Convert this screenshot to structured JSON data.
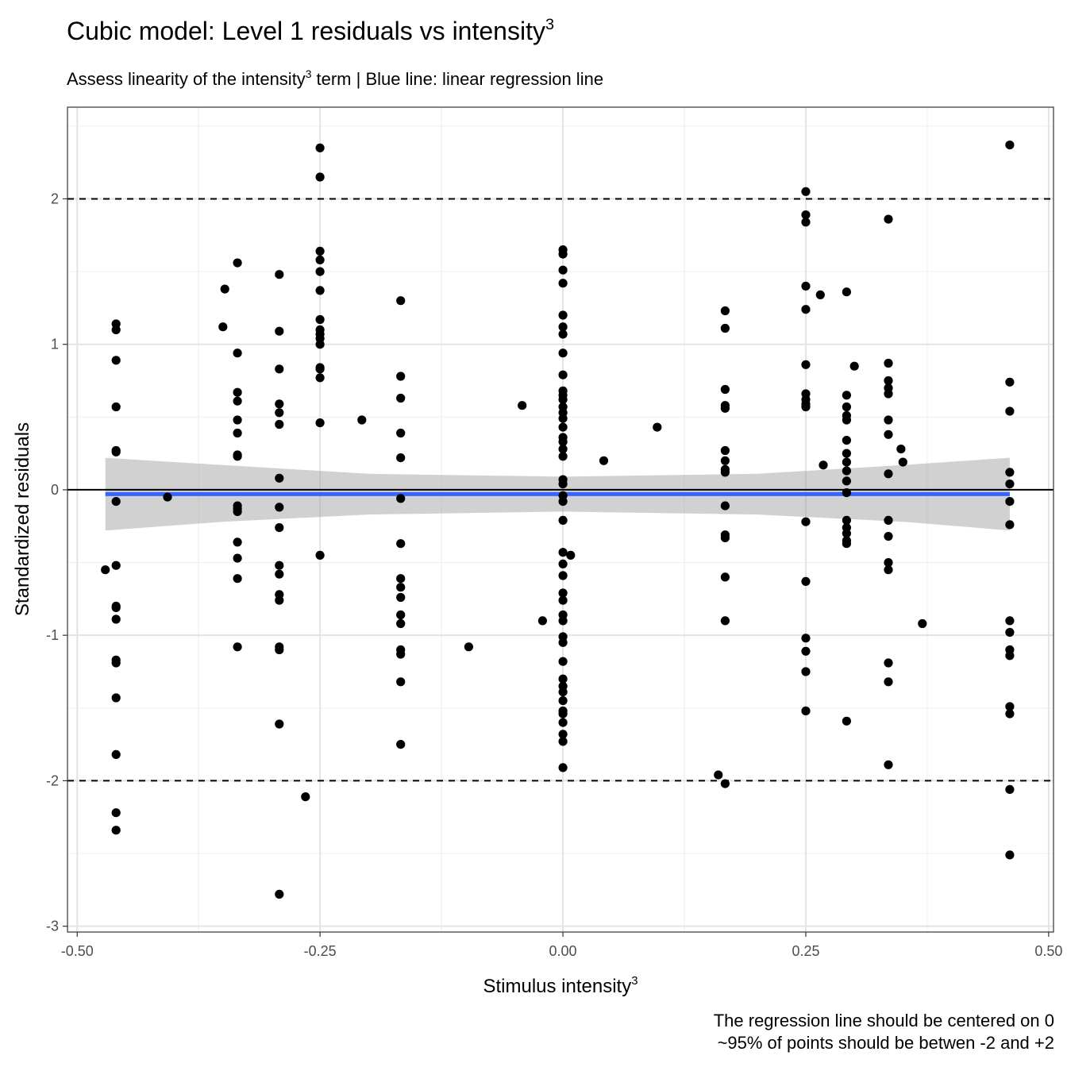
{
  "chart_data": {
    "type": "scatter",
    "title": "Cubic model: Level 1 residuals vs intensity",
    "title_superscript": "3",
    "subtitle_before": "Assess linearity of the intensity",
    "subtitle_superscript": "3",
    "subtitle_after": " term | Blue line: linear regression line",
    "xlabel": "Stimulus intensity",
    "xlabel_superscript": "3",
    "ylabel": "Standardized residuals",
    "caption_lines": [
      "The regression line should be centered on 0",
      "~95% of points should be betwen -2 and +2"
    ],
    "xlim": [
      -0.51,
      0.505
    ],
    "ylim": [
      -3.04,
      2.63
    ],
    "x_ticks": [
      {
        "value": -0.5,
        "label": "-0.50"
      },
      {
        "value": -0.25,
        "label": "-0.25"
      },
      {
        "value": 0,
        "label": "0.00"
      },
      {
        "value": 0.25,
        "label": "0.25"
      },
      {
        "value": 0.5,
        "label": "0.50"
      }
    ],
    "y_ticks": [
      {
        "value": -3,
        "label": "-3"
      },
      {
        "value": -2,
        "label": "-2"
      },
      {
        "value": -1,
        "label": "-1"
      },
      {
        "value": 0,
        "label": "0"
      },
      {
        "value": 1,
        "label": "1"
      },
      {
        "value": 2,
        "label": "2"
      }
    ],
    "grid": true,
    "reference_lines": {
      "zero": 0,
      "dashed": [
        -2,
        2
      ]
    },
    "regression": {
      "color": "#3366ff",
      "x": [
        -0.471,
        0.46
      ],
      "y": [
        -0.03,
        -0.03
      ],
      "ci_band": [
        {
          "x": -0.471,
          "lower": -0.28,
          "upper": 0.22
        },
        {
          "x": -0.35,
          "lower": -0.22,
          "upper": 0.17
        },
        {
          "x": -0.2,
          "lower": -0.17,
          "upper": 0.11
        },
        {
          "x": 0.0,
          "lower": -0.15,
          "upper": 0.09
        },
        {
          "x": 0.2,
          "lower": -0.17,
          "upper": 0.11
        },
        {
          "x": 0.35,
          "lower": -0.22,
          "upper": 0.17
        },
        {
          "x": 0.46,
          "lower": -0.28,
          "upper": 0.22
        }
      ]
    },
    "points": [
      {
        "x": -0.471,
        "y": -0.55
      },
      {
        "x": -0.46,
        "y": 1.14
      },
      {
        "x": -0.46,
        "y": 1.1
      },
      {
        "x": -0.46,
        "y": 0.89
      },
      {
        "x": -0.46,
        "y": 0.57
      },
      {
        "x": -0.46,
        "y": 0.27
      },
      {
        "x": -0.46,
        "y": 0.26
      },
      {
        "x": -0.46,
        "y": -0.08
      },
      {
        "x": -0.46,
        "y": -0.52
      },
      {
        "x": -0.46,
        "y": -0.8
      },
      {
        "x": -0.46,
        "y": -0.81
      },
      {
        "x": -0.46,
        "y": -0.89
      },
      {
        "x": -0.46,
        "y": -1.17
      },
      {
        "x": -0.46,
        "y": -1.19
      },
      {
        "x": -0.46,
        "y": -1.43
      },
      {
        "x": -0.46,
        "y": -1.82
      },
      {
        "x": -0.46,
        "y": -2.22
      },
      {
        "x": -0.46,
        "y": -2.34
      },
      {
        "x": -0.407,
        "y": -0.05
      },
      {
        "x": -0.348,
        "y": 1.38
      },
      {
        "x": -0.35,
        "y": 1.12
      },
      {
        "x": -0.335,
        "y": 1.56
      },
      {
        "x": -0.335,
        "y": 0.94
      },
      {
        "x": -0.335,
        "y": 0.67
      },
      {
        "x": -0.335,
        "y": 0.61
      },
      {
        "x": -0.335,
        "y": 0.48
      },
      {
        "x": -0.335,
        "y": 0.39
      },
      {
        "x": -0.335,
        "y": 0.24
      },
      {
        "x": -0.335,
        "y": 0.23
      },
      {
        "x": -0.335,
        "y": -0.11
      },
      {
        "x": -0.335,
        "y": -0.13
      },
      {
        "x": -0.335,
        "y": -0.15
      },
      {
        "x": -0.335,
        "y": -0.36
      },
      {
        "x": -0.335,
        "y": -0.47
      },
      {
        "x": -0.335,
        "y": -0.61
      },
      {
        "x": -0.335,
        "y": -1.08
      },
      {
        "x": -0.292,
        "y": 1.48
      },
      {
        "x": -0.292,
        "y": 1.09
      },
      {
        "x": -0.292,
        "y": 0.83
      },
      {
        "x": -0.292,
        "y": 0.59
      },
      {
        "x": -0.292,
        "y": 0.53
      },
      {
        "x": -0.292,
        "y": 0.45
      },
      {
        "x": -0.292,
        "y": 0.08
      },
      {
        "x": -0.292,
        "y": -0.12
      },
      {
        "x": -0.292,
        "y": -0.26
      },
      {
        "x": -0.292,
        "y": -0.52
      },
      {
        "x": -0.292,
        "y": -0.58
      },
      {
        "x": -0.292,
        "y": -0.72
      },
      {
        "x": -0.292,
        "y": -0.76
      },
      {
        "x": -0.292,
        "y": -1.08
      },
      {
        "x": -0.292,
        "y": -1.1
      },
      {
        "x": -0.292,
        "y": -1.61
      },
      {
        "x": -0.292,
        "y": -2.78
      },
      {
        "x": -0.265,
        "y": -2.11
      },
      {
        "x": -0.25,
        "y": 2.35
      },
      {
        "x": -0.25,
        "y": 2.15
      },
      {
        "x": -0.25,
        "y": 1.64
      },
      {
        "x": -0.25,
        "y": 1.58
      },
      {
        "x": -0.25,
        "y": 1.5
      },
      {
        "x": -0.25,
        "y": 1.37
      },
      {
        "x": -0.25,
        "y": 1.17
      },
      {
        "x": -0.25,
        "y": 1.1
      },
      {
        "x": -0.25,
        "y": 1.07
      },
      {
        "x": -0.25,
        "y": 1.04
      },
      {
        "x": -0.25,
        "y": 1.0
      },
      {
        "x": -0.25,
        "y": 0.84
      },
      {
        "x": -0.25,
        "y": 0.83
      },
      {
        "x": -0.25,
        "y": 0.77
      },
      {
        "x": -0.25,
        "y": 0.46
      },
      {
        "x": -0.25,
        "y": -0.45
      },
      {
        "x": -0.207,
        "y": 0.48
      },
      {
        "x": -0.167,
        "y": 1.3
      },
      {
        "x": -0.167,
        "y": 0.78
      },
      {
        "x": -0.167,
        "y": 0.63
      },
      {
        "x": -0.167,
        "y": 0.39
      },
      {
        "x": -0.167,
        "y": 0.22
      },
      {
        "x": -0.167,
        "y": -0.06
      },
      {
        "x": -0.167,
        "y": -0.37
      },
      {
        "x": -0.167,
        "y": -0.61
      },
      {
        "x": -0.167,
        "y": -0.67
      },
      {
        "x": -0.167,
        "y": -0.74
      },
      {
        "x": -0.167,
        "y": -0.86
      },
      {
        "x": -0.167,
        "y": -0.92
      },
      {
        "x": -0.167,
        "y": -1.1
      },
      {
        "x": -0.167,
        "y": -1.13
      },
      {
        "x": -0.167,
        "y": -1.32
      },
      {
        "x": -0.167,
        "y": -1.75
      },
      {
        "x": -0.097,
        "y": -1.08
      },
      {
        "x": -0.042,
        "y": 0.58
      },
      {
        "x": -0.021,
        "y": -0.9
      },
      {
        "x": 0.0,
        "y": 1.65
      },
      {
        "x": 0.0,
        "y": 1.62
      },
      {
        "x": 0.0,
        "y": 1.51
      },
      {
        "x": 0.0,
        "y": 1.42
      },
      {
        "x": 0.0,
        "y": 1.2
      },
      {
        "x": 0.0,
        "y": 1.12
      },
      {
        "x": 0.0,
        "y": 1.07
      },
      {
        "x": 0.0,
        "y": 0.94
      },
      {
        "x": 0.0,
        "y": 0.79
      },
      {
        "x": 0.0,
        "y": 0.68
      },
      {
        "x": 0.0,
        "y": 0.65
      },
      {
        "x": 0.0,
        "y": 0.62
      },
      {
        "x": 0.0,
        "y": 0.57
      },
      {
        "x": 0.0,
        "y": 0.53
      },
      {
        "x": 0.0,
        "y": 0.49
      },
      {
        "x": 0.0,
        "y": 0.43
      },
      {
        "x": 0.0,
        "y": 0.36
      },
      {
        "x": 0.0,
        "y": 0.33
      },
      {
        "x": 0.0,
        "y": 0.28
      },
      {
        "x": 0.0,
        "y": 0.23
      },
      {
        "x": 0.0,
        "y": 0.07
      },
      {
        "x": 0.0,
        "y": 0.04
      },
      {
        "x": 0.0,
        "y": -0.04
      },
      {
        "x": 0.0,
        "y": -0.08
      },
      {
        "x": 0.0,
        "y": -0.21
      },
      {
        "x": 0.0,
        "y": -0.43
      },
      {
        "x": 0.0,
        "y": -0.51
      },
      {
        "x": 0.0,
        "y": -0.59
      },
      {
        "x": 0.0,
        "y": -0.71
      },
      {
        "x": 0.0,
        "y": -0.76
      },
      {
        "x": 0.0,
        "y": -0.86
      },
      {
        "x": 0.0,
        "y": -0.9
      },
      {
        "x": 0.0,
        "y": -1.01
      },
      {
        "x": 0.0,
        "y": -1.05
      },
      {
        "x": 0.0,
        "y": -1.18
      },
      {
        "x": 0.0,
        "y": -1.3
      },
      {
        "x": 0.0,
        "y": -1.35
      },
      {
        "x": 0.0,
        "y": -1.39
      },
      {
        "x": 0.0,
        "y": -1.45
      },
      {
        "x": 0.0,
        "y": -1.52
      },
      {
        "x": 0.0,
        "y": -1.54
      },
      {
        "x": 0.0,
        "y": -1.6
      },
      {
        "x": 0.0,
        "y": -1.68
      },
      {
        "x": 0.0,
        "y": -1.73
      },
      {
        "x": 0.0,
        "y": -1.91
      },
      {
        "x": 0.008,
        "y": -0.45
      },
      {
        "x": 0.042,
        "y": 0.2
      },
      {
        "x": 0.097,
        "y": 0.43
      },
      {
        "x": 0.16,
        "y": -1.96
      },
      {
        "x": 0.167,
        "y": 1.23
      },
      {
        "x": 0.167,
        "y": 1.11
      },
      {
        "x": 0.167,
        "y": 0.69
      },
      {
        "x": 0.167,
        "y": 0.58
      },
      {
        "x": 0.167,
        "y": 0.56
      },
      {
        "x": 0.167,
        "y": 0.27
      },
      {
        "x": 0.167,
        "y": 0.2
      },
      {
        "x": 0.167,
        "y": 0.14
      },
      {
        "x": 0.167,
        "y": 0.12
      },
      {
        "x": 0.167,
        "y": -0.11
      },
      {
        "x": 0.167,
        "y": -0.31
      },
      {
        "x": 0.167,
        "y": -0.33
      },
      {
        "x": 0.167,
        "y": -0.6
      },
      {
        "x": 0.167,
        "y": -0.9
      },
      {
        "x": 0.167,
        "y": -2.02
      },
      {
        "x": 0.25,
        "y": 2.05
      },
      {
        "x": 0.25,
        "y": 1.89
      },
      {
        "x": 0.25,
        "y": 1.84
      },
      {
        "x": 0.25,
        "y": 1.4
      },
      {
        "x": 0.25,
        "y": 1.24
      },
      {
        "x": 0.25,
        "y": 0.86
      },
      {
        "x": 0.25,
        "y": 0.66
      },
      {
        "x": 0.25,
        "y": 0.62
      },
      {
        "x": 0.25,
        "y": 0.59
      },
      {
        "x": 0.25,
        "y": 0.57
      },
      {
        "x": 0.25,
        "y": -0.22
      },
      {
        "x": 0.25,
        "y": -0.63
      },
      {
        "x": 0.25,
        "y": -1.02
      },
      {
        "x": 0.25,
        "y": -1.11
      },
      {
        "x": 0.25,
        "y": -1.25
      },
      {
        "x": 0.25,
        "y": -1.52
      },
      {
        "x": 0.265,
        "y": 1.34
      },
      {
        "x": 0.268,
        "y": 0.17
      },
      {
        "x": 0.292,
        "y": 1.36
      },
      {
        "x": 0.292,
        "y": 0.65
      },
      {
        "x": 0.292,
        "y": 0.57
      },
      {
        "x": 0.292,
        "y": 0.51
      },
      {
        "x": 0.292,
        "y": 0.48
      },
      {
        "x": 0.292,
        "y": 0.34
      },
      {
        "x": 0.292,
        "y": 0.25
      },
      {
        "x": 0.292,
        "y": 0.19
      },
      {
        "x": 0.292,
        "y": 0.13
      },
      {
        "x": 0.292,
        "y": 0.06
      },
      {
        "x": 0.292,
        "y": -0.02
      },
      {
        "x": 0.292,
        "y": -0.21
      },
      {
        "x": 0.292,
        "y": -0.26
      },
      {
        "x": 0.292,
        "y": -0.3
      },
      {
        "x": 0.292,
        "y": -0.35
      },
      {
        "x": 0.292,
        "y": -0.37
      },
      {
        "x": 0.292,
        "y": -1.59
      },
      {
        "x": 0.3,
        "y": 0.85
      },
      {
        "x": 0.335,
        "y": 1.86
      },
      {
        "x": 0.335,
        "y": 0.87
      },
      {
        "x": 0.335,
        "y": 0.75
      },
      {
        "x": 0.335,
        "y": 0.7
      },
      {
        "x": 0.335,
        "y": 0.66
      },
      {
        "x": 0.335,
        "y": 0.48
      },
      {
        "x": 0.335,
        "y": 0.38
      },
      {
        "x": 0.335,
        "y": 0.11
      },
      {
        "x": 0.335,
        "y": -0.21
      },
      {
        "x": 0.335,
        "y": -0.32
      },
      {
        "x": 0.335,
        "y": -0.5
      },
      {
        "x": 0.335,
        "y": -0.55
      },
      {
        "x": 0.335,
        "y": -1.19
      },
      {
        "x": 0.335,
        "y": -1.32
      },
      {
        "x": 0.335,
        "y": -1.89
      },
      {
        "x": 0.348,
        "y": 0.28
      },
      {
        "x": 0.35,
        "y": 0.19
      },
      {
        "x": 0.37,
        "y": -0.92
      },
      {
        "x": 0.46,
        "y": 2.37
      },
      {
        "x": 0.46,
        "y": 0.74
      },
      {
        "x": 0.46,
        "y": 0.54
      },
      {
        "x": 0.46,
        "y": 0.12
      },
      {
        "x": 0.46,
        "y": 0.04
      },
      {
        "x": 0.46,
        "y": -0.08
      },
      {
        "x": 0.46,
        "y": -0.24
      },
      {
        "x": 0.46,
        "y": -0.9
      },
      {
        "x": 0.46,
        "y": -0.98
      },
      {
        "x": 0.46,
        "y": -1.1
      },
      {
        "x": 0.46,
        "y": -1.14
      },
      {
        "x": 0.46,
        "y": -1.49
      },
      {
        "x": 0.46,
        "y": -1.54
      },
      {
        "x": 0.46,
        "y": -2.06
      },
      {
        "x": 0.46,
        "y": -2.51
      }
    ]
  }
}
